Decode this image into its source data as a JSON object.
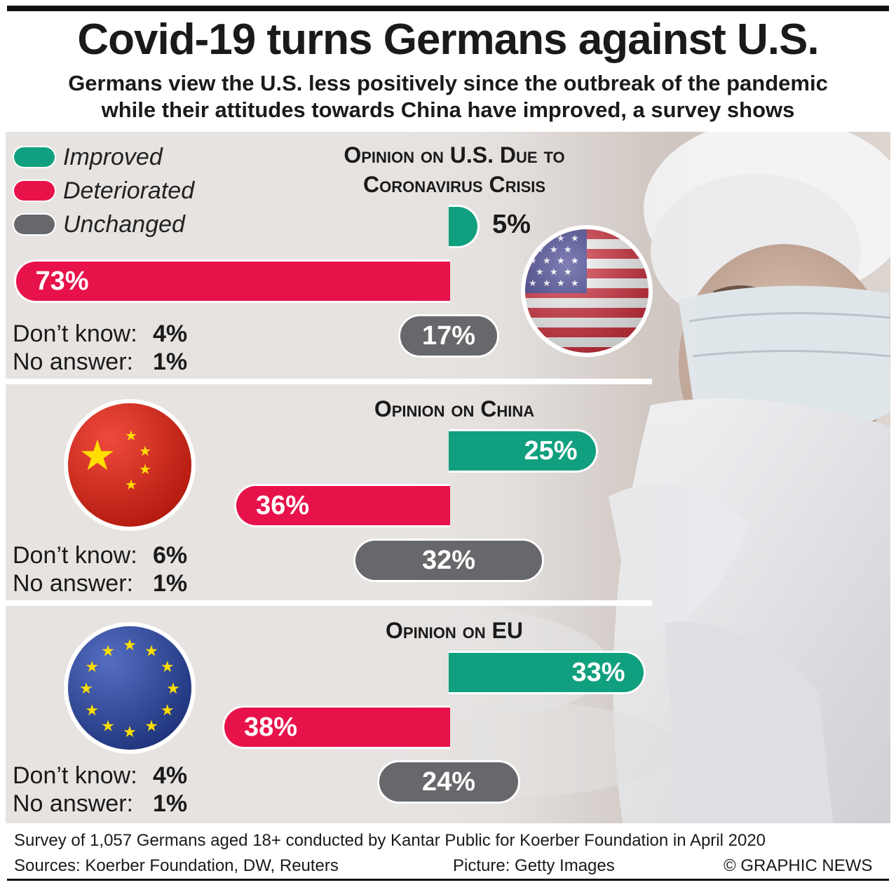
{
  "title": "Covid-19 turns Germans against U.S.",
  "subtitle_line1": "Germans view the U.S. less positively since the outbreak of the pandemic",
  "subtitle_line2": "while their attitudes towards China have improved, a survey shows",
  "legend": [
    {
      "label": "Improved",
      "color": "#11a07f"
    },
    {
      "label": "Deteriorated",
      "color": "#e8124a"
    },
    {
      "label": "Unchanged",
      "color": "#67686b"
    }
  ],
  "panels": [
    {
      "title_line1": "Opinion on U.S. Due to",
      "title_line2": "Coronavirus Crisis",
      "improved": "5%",
      "deteriorated": "73%",
      "unchanged": "17%",
      "dont_know_label": "Don’t know:",
      "dont_know": "4%",
      "no_answer_label": "No answer:",
      "no_answer": "1%",
      "flag": "usa-flag"
    },
    {
      "title_line1": "Opinion on China",
      "improved": "25%",
      "deteriorated": "36%",
      "unchanged": "32%",
      "dont_know_label": "Don’t know:",
      "dont_know": "6%",
      "no_answer_label": "No answer:",
      "no_answer": "1%",
      "flag": "china-flag"
    },
    {
      "title_line1": "Opinion on EU",
      "improved": "33%",
      "deteriorated": "38%",
      "unchanged": "24%",
      "dont_know_label": "Don’t know:",
      "dont_know": "4%",
      "no_answer_label": "No answer:",
      "no_answer": "1%",
      "flag": "eu-flag"
    }
  ],
  "footer": {
    "survey": "Survey of 1,057 Germans aged 18+ conducted by Kantar Public for Koerber Foundation in April 2020",
    "sources": "Sources: Koerber Foundation, DW, Reuters",
    "picture": "Picture: Getty Images",
    "copyright": "© GRAPHIC NEWS"
  },
  "chart_data": [
    {
      "type": "bar",
      "title": "Opinion on U.S. Due to Coronavirus Crisis",
      "categories": [
        "Improved",
        "Deteriorated",
        "Unchanged"
      ],
      "values": [
        5,
        73,
        17
      ],
      "dont_know": 4,
      "no_answer": 1
    },
    {
      "type": "bar",
      "title": "Opinion on China",
      "categories": [
        "Improved",
        "Deteriorated",
        "Unchanged"
      ],
      "values": [
        25,
        36,
        32
      ],
      "dont_know": 6,
      "no_answer": 1
    },
    {
      "type": "bar",
      "title": "Opinion on EU",
      "categories": [
        "Improved",
        "Deteriorated",
        "Unchanged"
      ],
      "values": [
        33,
        38,
        24
      ],
      "dont_know": 4,
      "no_answer": 1
    }
  ]
}
